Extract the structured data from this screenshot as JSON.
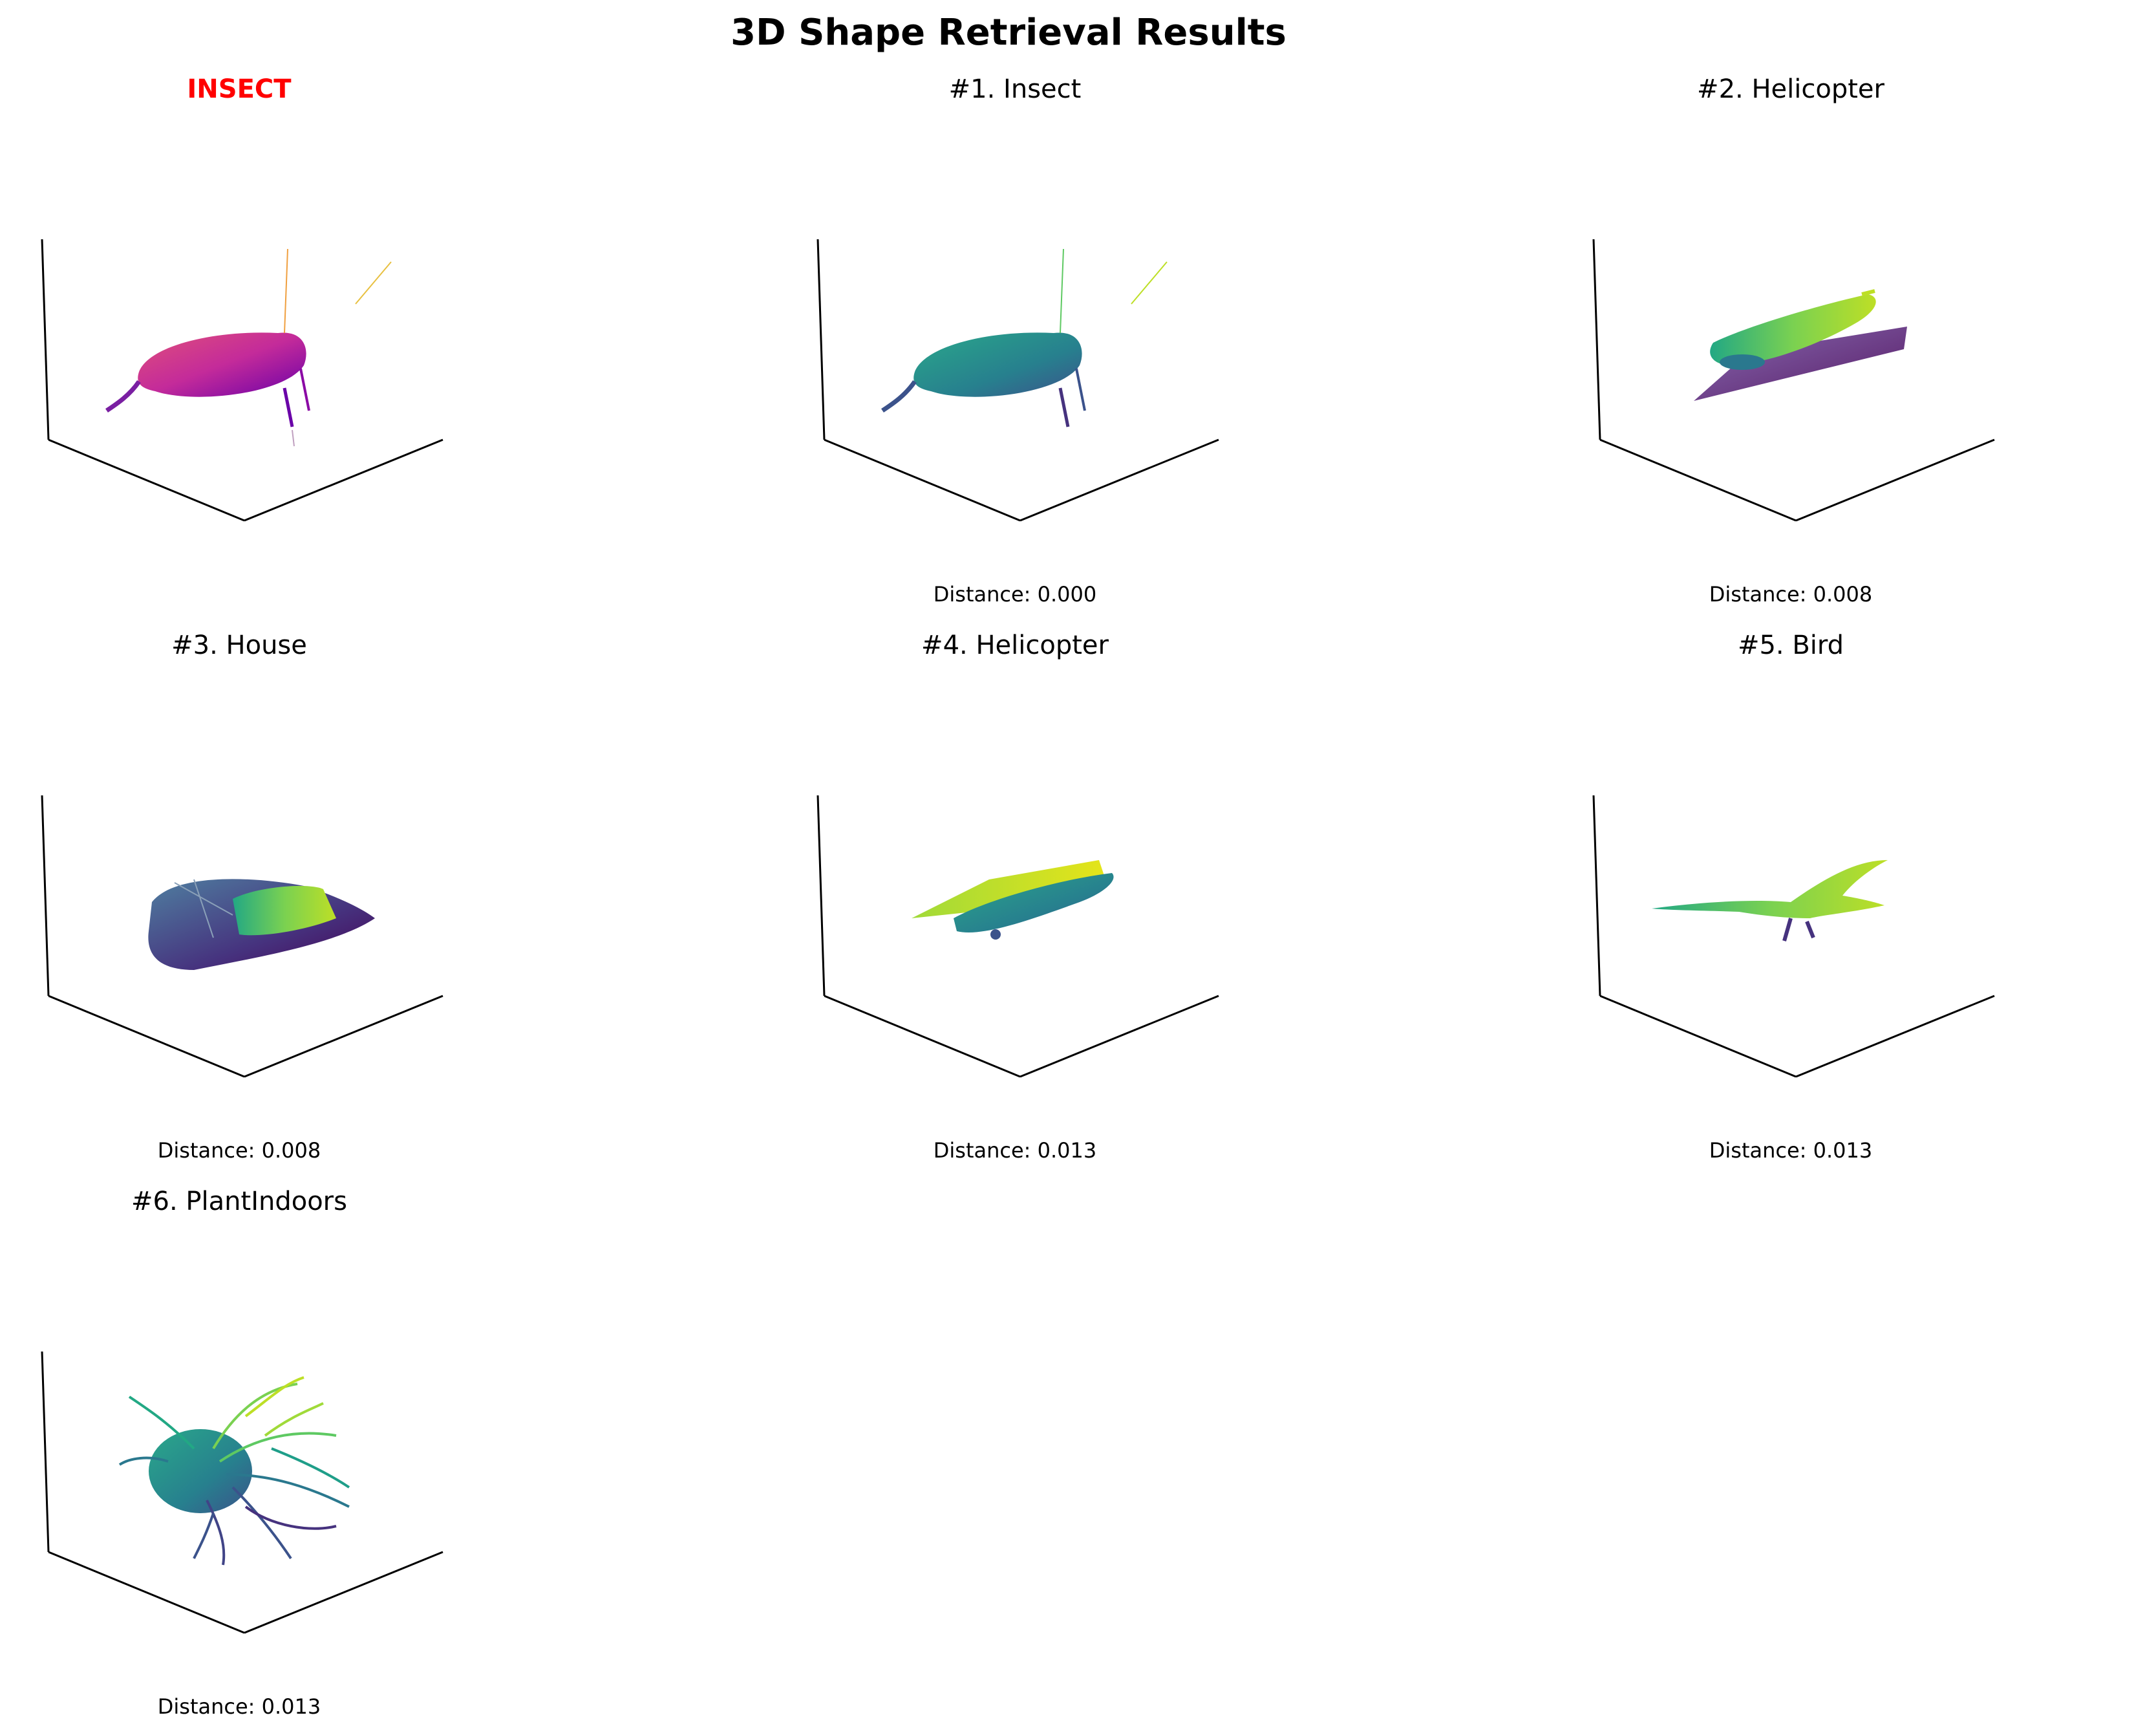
{
  "figure_title": "3D Shape Retrieval Results",
  "query": {
    "label": "INSECT",
    "label_color": "#ff0000",
    "colormap": "plasma",
    "shape_icon": "insect-shape-icon"
  },
  "results": [
    {
      "title": "#1. Insect",
      "distance": "Distance: 0.000",
      "colormap": "viridis",
      "shape_icon": "insect-shape-icon"
    },
    {
      "title": "#2. Helicopter",
      "distance": "Distance: 0.008",
      "colormap": "viridis",
      "shape_icon": "helicopter-shape-icon"
    },
    {
      "title": "#3. House",
      "distance": "Distance: 0.008",
      "colormap": "viridis",
      "shape_icon": "house-shape-icon"
    },
    {
      "title": "#4. Helicopter",
      "distance": "Distance: 0.013",
      "colormap": "viridis",
      "shape_icon": "helicopter-shape-icon"
    },
    {
      "title": "#5. Bird",
      "distance": "Distance: 0.013",
      "colormap": "viridis",
      "shape_icon": "bird-shape-icon"
    },
    {
      "title": "#6. PlantIndoors",
      "distance": "Distance: 0.013",
      "colormap": "viridis",
      "shape_icon": "plant-shape-icon"
    }
  ]
}
